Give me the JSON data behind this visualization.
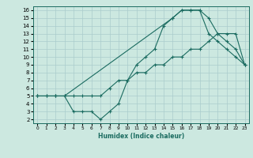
{
  "xlabel": "Humidex (Indice chaleur)",
  "bg_color": "#cce8e0",
  "grid_color": "#aacccc",
  "line_color": "#1a6b60",
  "xlim": [
    -0.5,
    23.5
  ],
  "ylim": [
    1.5,
    16.5
  ],
  "xticks": [
    0,
    1,
    2,
    3,
    4,
    5,
    6,
    7,
    8,
    9,
    10,
    11,
    12,
    13,
    14,
    15,
    16,
    17,
    18,
    19,
    20,
    21,
    22,
    23
  ],
  "yticks": [
    2,
    3,
    4,
    5,
    6,
    7,
    8,
    9,
    10,
    11,
    12,
    13,
    14,
    15,
    16
  ],
  "line1_x": [
    0,
    1,
    2,
    3,
    4,
    5,
    6,
    7,
    8,
    9,
    10,
    11,
    12,
    13,
    14,
    15,
    16,
    17,
    18,
    19,
    20,
    21,
    22,
    23
  ],
  "line1_y": [
    5,
    5,
    5,
    5,
    5,
    5,
    5,
    5,
    6,
    7,
    7,
    8,
    8,
    9,
    9,
    10,
    10,
    11,
    11,
    12,
    13,
    13,
    13,
    9
  ],
  "line2_x": [
    0,
    1,
    2,
    3,
    4,
    5,
    6,
    7,
    8,
    9,
    10,
    11,
    12,
    13,
    14,
    15,
    16,
    17,
    18,
    19,
    20,
    21,
    22,
    23
  ],
  "line2_y": [
    5,
    5,
    5,
    5,
    3,
    3,
    3,
    2,
    3,
    4,
    7,
    9,
    10,
    11,
    14,
    15,
    16,
    16,
    16,
    13,
    12,
    11,
    10,
    9
  ],
  "line3_x": [
    0,
    2,
    3,
    15,
    16,
    17,
    18,
    19,
    20,
    21,
    22,
    23
  ],
  "line3_y": [
    5,
    5,
    5,
    15,
    16,
    16,
    16,
    15,
    13,
    12,
    11,
    9
  ]
}
